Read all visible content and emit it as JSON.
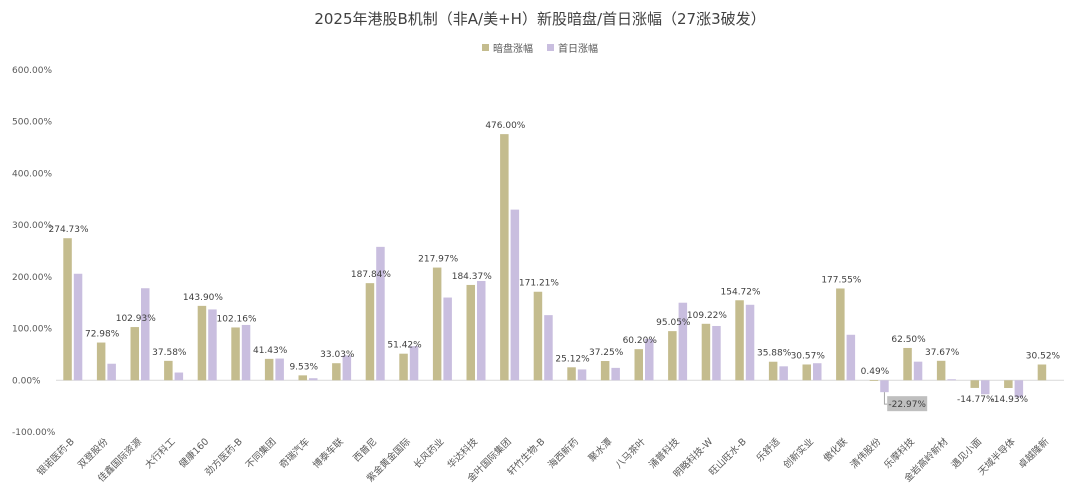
{
  "chart_data": {
    "type": "bar",
    "title": "2025年港股B机制（非A/美+H）新股暗盘/首日涨幅（27涨3破发）",
    "xlabel": "",
    "ylabel": "",
    "ylim": [
      -100,
      600
    ],
    "yticks": [
      "-100.00%",
      "0.00%",
      "100.00%",
      "200.00%",
      "300.00%",
      "400.00%",
      "500.00%",
      "600.00%"
    ],
    "ytick_values": [
      -100,
      0,
      100,
      200,
      300,
      400,
      500,
      600
    ],
    "grid": false,
    "legend_position": "top",
    "colors": {
      "series0": "#c4bc8e",
      "series1": "#c9bedf",
      "label_box": "#bfbfbf"
    },
    "categories": [
      "银诺医药-B",
      "双登股份",
      "佳鑫国际资源",
      "大行科工",
      "健康160",
      "劲方医药-B",
      "不同集团",
      "奇瑞汽车",
      "博泰车联",
      "西普尼",
      "紫金黄金国际",
      "长风药业",
      "华达科技",
      "金叶国际集团",
      "轩竹生物-B",
      "海西新药",
      "聚水潭",
      "八马茶叶",
      "涌普科技",
      "明略科技-W",
      "旺山旺水-B",
      "乐舒适",
      "创新实业",
      "傲化联",
      "清伟股份",
      "乐摩科技",
      "金岩高岭新材",
      "遇见小面",
      "天域半导体",
      "卓越隆新"
    ],
    "series": [
      {
        "name": "暗盘涨幅",
        "values": [
          274.73,
          72.98,
          102.93,
          37.58,
          143.9,
          102.16,
          41.43,
          9.53,
          33.03,
          187.84,
          51.42,
          217.97,
          184.37,
          476.0,
          171.21,
          25.12,
          37.25,
          60.2,
          95.05,
          109.22,
          154.72,
          35.88,
          30.57,
          177.55,
          0.49,
          62.5,
          37.67,
          -14.77,
          -14.93,
          30.52
        ],
        "labels": [
          "274.73%",
          "72.98%",
          "102.93%",
          "37.58%",
          "143.90%",
          "102.16%",
          "41.43%",
          "9.53%",
          "33.03%",
          "187.84%",
          "51.42%",
          "217.97%",
          "184.37%",
          "476.00%",
          "171.21%",
          "25.12%",
          "37.25%",
          "60.20%",
          "95.05%",
          "109.22%",
          "154.72%",
          "35.88%",
          "30.57%",
          "177.55%",
          "0.49%",
          "62.50%",
          "37.67%",
          "-14.77%",
          "-14.93%",
          "30.52%"
        ]
      },
      {
        "name": "首日涨幅",
        "values": [
          206,
          32,
          178,
          15,
          137,
          107,
          42,
          4,
          48,
          258,
          66,
          160,
          192,
          330,
          126,
          21,
          24,
          80,
          150,
          105,
          146,
          27,
          33,
          88,
          -22.97,
          36,
          2,
          -27,
          -33,
          null
        ],
        "labels": []
      }
    ],
    "annotations": [
      {
        "category_index": 24,
        "series": 1,
        "text": "-22.97%"
      }
    ]
  }
}
